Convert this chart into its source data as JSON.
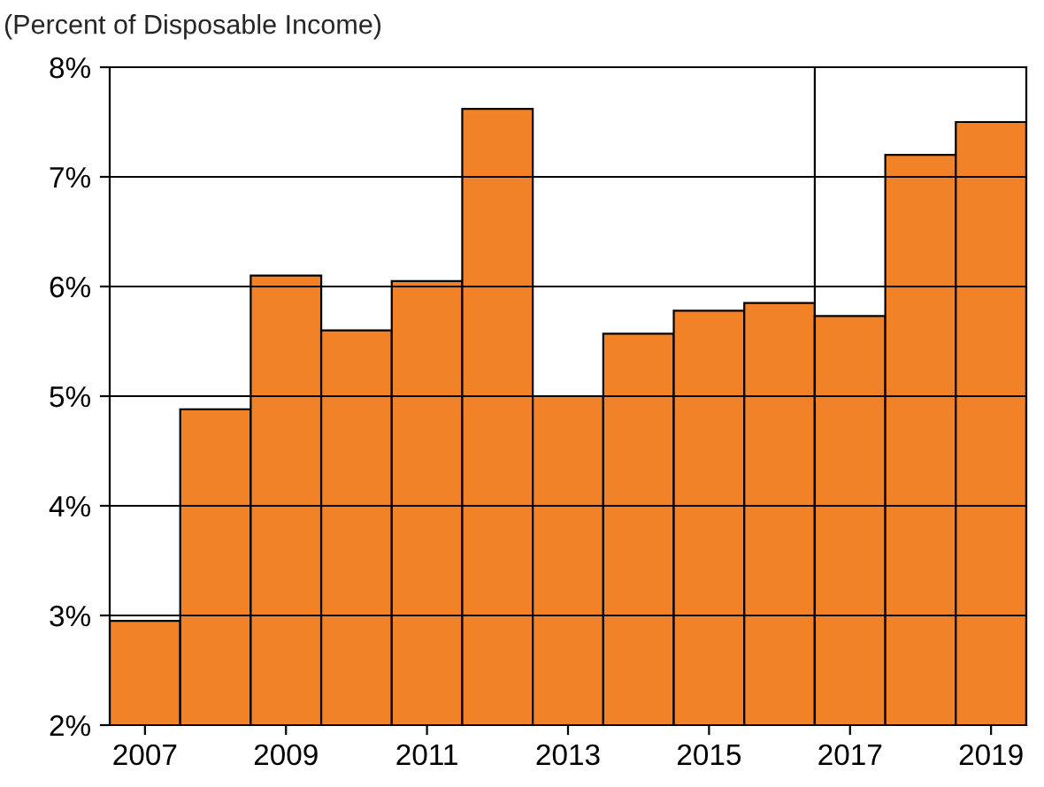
{
  "chart_data": {
    "type": "bar",
    "ylabel": "(Percent of Disposable Income)",
    "x": [
      2007,
      2008,
      2009,
      2010,
      2011,
      2012,
      2013,
      2014,
      2015,
      2016,
      2017,
      2018,
      2019
    ],
    "values": [
      2.95,
      4.88,
      6.1,
      5.6,
      6.05,
      7.62,
      5.0,
      5.57,
      5.78,
      5.85,
      5.73,
      7.2,
      7.5
    ],
    "color": "#f28228",
    "xlim": [
      2006.5,
      2019.5
    ],
    "xticks": [
      2007,
      2009,
      2011,
      2013,
      2015,
      2017,
      2019
    ],
    "ylim": [
      2,
      8
    ],
    "yticks": [
      {
        "value": 2,
        "label": "2%"
      },
      {
        "value": 3,
        "label": "3%"
      },
      {
        "value": 4,
        "label": "4%"
      },
      {
        "value": 5,
        "label": "5%"
      },
      {
        "value": 6,
        "label": "6%"
      },
      {
        "value": 7,
        "label": "7%"
      },
      {
        "value": 8,
        "label": "8%"
      }
    ],
    "grid": "y",
    "ref_lines": [
      {
        "axis": "x",
        "value": 2016.5,
        "color": "#000000"
      }
    ]
  }
}
